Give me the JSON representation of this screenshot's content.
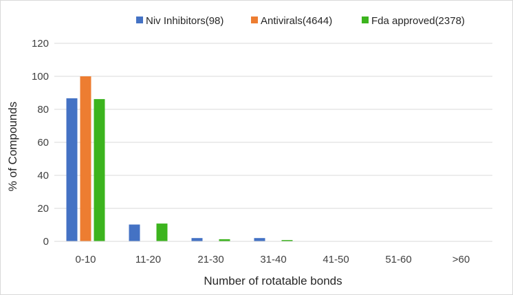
{
  "chart_data": {
    "type": "bar",
    "title": "",
    "xlabel": "Number of rotatable bonds",
    "ylabel": "% of Compounds",
    "ylim": [
      0,
      120
    ],
    "yticks": [
      0,
      20,
      40,
      60,
      80,
      100,
      120
    ],
    "grid": true,
    "legend": "top-right",
    "categories": [
      "0-10",
      "11-20",
      "21-30",
      "31-40",
      "41-50",
      "51-60",
      ">60"
    ],
    "series": [
      {
        "name": "Niv Inhibitors(98)",
        "color": "#4472c4",
        "values": [
          86.7,
          10.2,
          2.0,
          2.0,
          0,
          0,
          0
        ]
      },
      {
        "name": "Antivirals(4644)",
        "color": "#ed7d31",
        "values": [
          100,
          0,
          0,
          0,
          0,
          0,
          0
        ]
      },
      {
        "name": "Fda approved(2378)",
        "color": "#3cb41e",
        "values": [
          86.2,
          10.8,
          1.3,
          0.8,
          0,
          0,
          0
        ]
      }
    ]
  }
}
